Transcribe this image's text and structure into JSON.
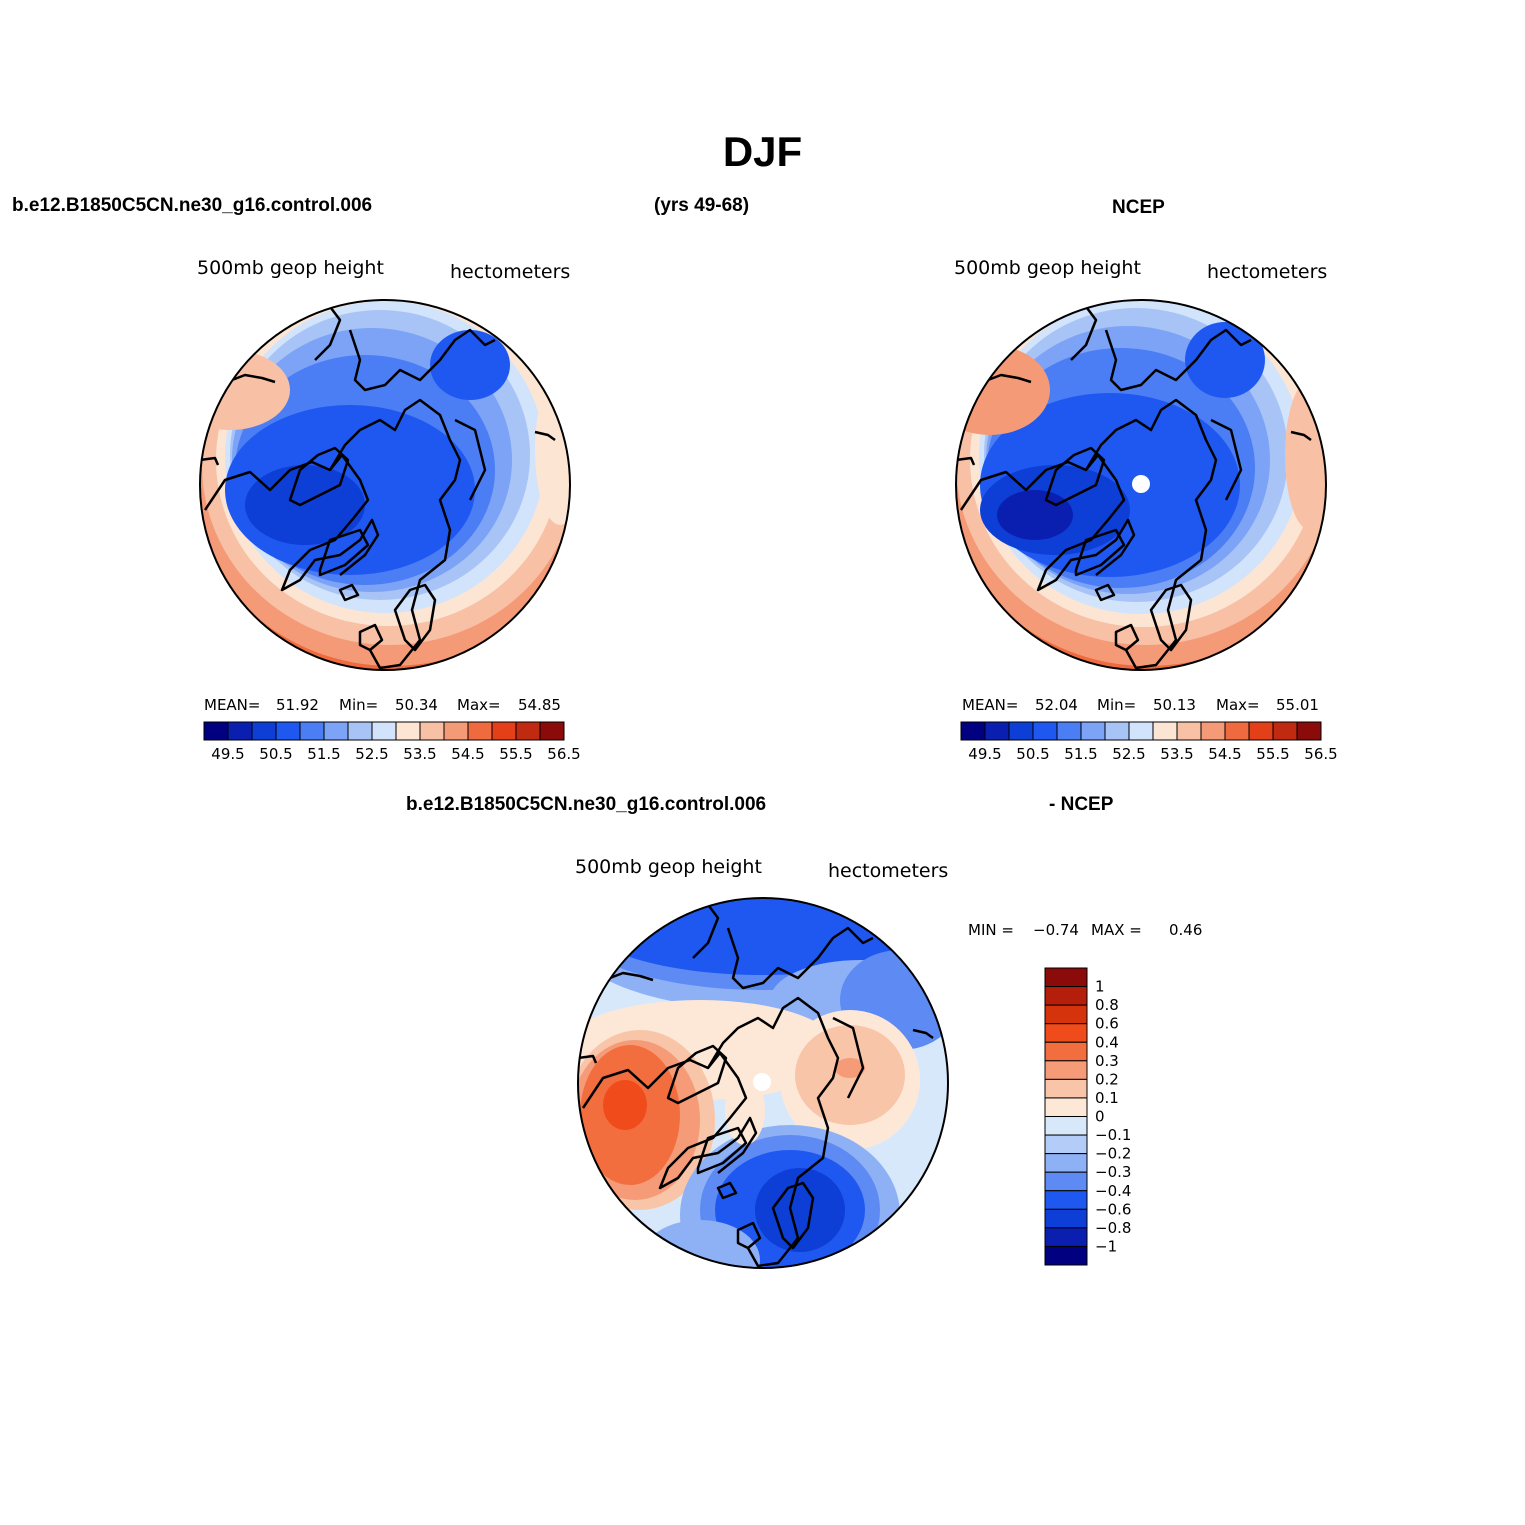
{
  "header": {
    "title": "DJF",
    "case_name": "b.e12.B1850C5CN.ne30_g16.control.006",
    "years": "(yrs 49-68)",
    "obs_name": "NCEP"
  },
  "panels": {
    "model": {
      "title": "500mb geop height",
      "units": "hectometers",
      "mean_label": "MEAN=",
      "mean_value": "51.92",
      "min_label": "Min=",
      "min_value": "50.34",
      "max_label": "Max=",
      "max_value": "54.85"
    },
    "obs": {
      "title": "500mb geop height",
      "units": "hectometers",
      "mean_label": "MEAN=",
      "mean_value": "52.04",
      "min_label": "Min=",
      "min_value": "50.13",
      "max_label": "Max=",
      "max_value": "55.01"
    },
    "diff": {
      "heading_left": "b.e12.B1850C5CN.ne30_g16.control.006",
      "heading_right": "- NCEP",
      "title": "500mb geop height",
      "units": "hectometers",
      "min_label": "MIN =",
      "min_value": "−0.74",
      "max_label": "MAX =",
      "max_value": "0.46"
    }
  },
  "colorbars": {
    "horizontal": {
      "colors": [
        "#000080",
        "#0a1fb0",
        "#0d3ed6",
        "#1f58f0",
        "#4b7ef5",
        "#7ca3f6",
        "#a8c4f7",
        "#d2e4fb",
        "#fde5d4",
        "#f8c0a4",
        "#f49a77",
        "#ef6b3f",
        "#e3401a",
        "#bf2a10",
        "#8b0a0a"
      ],
      "tick_labels": [
        "49.5",
        "50.5",
        "51.5",
        "52.5",
        "53.5",
        "54.5",
        "55.5",
        "56.5"
      ]
    },
    "vertical": {
      "colors_top_to_bottom": [
        "#8b0a0a",
        "#b41e0a",
        "#d5330c",
        "#ef4b1b",
        "#f26e3f",
        "#f59b78",
        "#f8c5a8",
        "#fde8d8",
        "#d8e8fb",
        "#b3cdf8",
        "#8eb1f6",
        "#5d8af3",
        "#1f58f0",
        "#0d3ed6",
        "#0a1fb0",
        "#000080"
      ],
      "tick_labels": [
        "1",
        "0.8",
        "0.6",
        "0.4",
        "0.3",
        "0.2",
        "0.1",
        "0",
        "−0.1",
        "−0.2",
        "−0.3",
        "−0.4",
        "−0.6",
        "−0.8",
        "−1"
      ]
    }
  }
}
